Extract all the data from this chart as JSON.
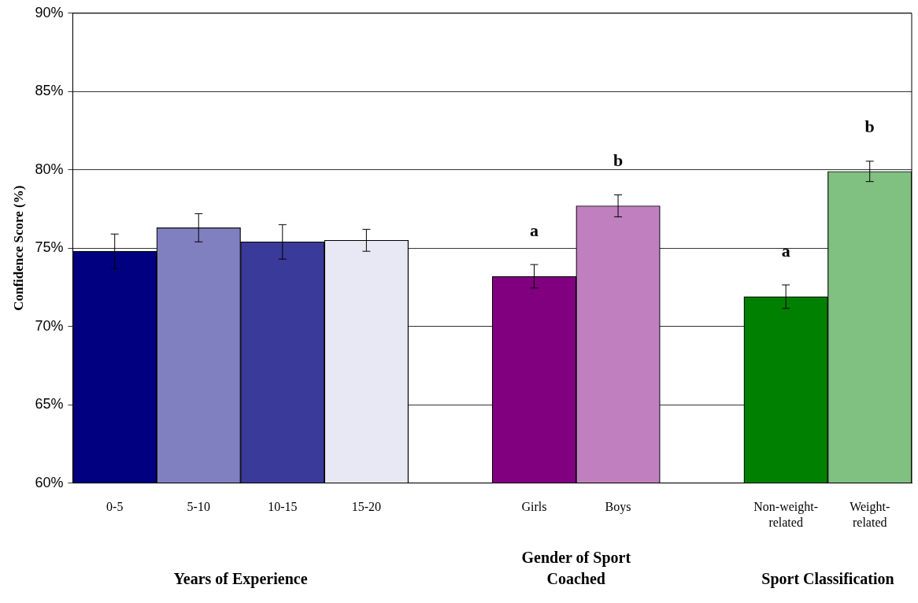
{
  "chart_data": {
    "type": "bar",
    "ylabel": "Confidence Score (%)",
    "categories": [
      "0-5",
      "5-10",
      "10-15",
      "15-20",
      null,
      "Girls",
      "Boys",
      null,
      "Non-weight-related",
      "Weight-related"
    ],
    "values": [
      74.8,
      76.3,
      75.4,
      75.5,
      null,
      73.2,
      77.7,
      null,
      71.9,
      79.9
    ],
    "errors": [
      1.1,
      0.9,
      1.1,
      0.7,
      null,
      0.75,
      0.7,
      null,
      0.75,
      0.65
    ],
    "colors": [
      "#000080",
      "#8080c0",
      "#3a3a9a",
      "#e8e8f4",
      null,
      "#800080",
      "#c080c0",
      null,
      "#008000",
      "#80c080"
    ],
    "ylim": [
      60,
      90
    ],
    "yticks": [
      {
        "value": 60,
        "label": "60%"
      },
      {
        "value": 65,
        "label": "65%"
      },
      {
        "value": 70,
        "label": "70%"
      },
      {
        "value": 75,
        "label": "75%"
      },
      {
        "value": 80,
        "label": "80%"
      },
      {
        "value": 85,
        "label": "85%"
      },
      {
        "value": 90,
        "label": "90%"
      }
    ],
    "grid": "y",
    "legend": false,
    "annotations": [
      "Years of Experience",
      "Gender of Sport Coached",
      "Sport Classification",
      {
        "text": "a",
        "x": "Girls",
        "y": 73.2
      },
      {
        "text": "b",
        "x": "Boys",
        "y": 77.7
      },
      {
        "text": "a",
        "x": "Non-weight-related",
        "y": 71.9
      },
      {
        "text": "b",
        "x": "Weight-related",
        "y": 79.9
      }
    ]
  }
}
